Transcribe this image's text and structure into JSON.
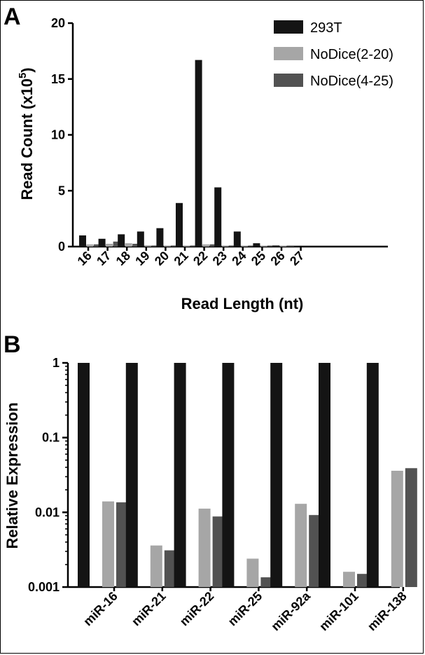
{
  "figure": {
    "panel_a_letter": "A",
    "panel_b_letter": "B"
  },
  "colors": {
    "series_293T": "#141414",
    "series_nodice_2_20": "#a6a6a6",
    "series_nodice_4_25": "#525252"
  },
  "chart_data": [
    {
      "type": "bar",
      "panel": "A",
      "categories": [
        "16",
        "17",
        "18",
        "19",
        "20",
        "21",
        "22",
        "23",
        "24",
        "25",
        "26",
        "27"
      ],
      "xlabel": "Read Length (nt)",
      "ylabel_main": "Read Count (x10",
      "ylabel_sup": "5",
      "ylabel_end": ")",
      "ylim": [
        0,
        20
      ],
      "yticks": [
        "0",
        "5",
        "10",
        "15",
        "20"
      ],
      "ytick_values": [
        0,
        5,
        10,
        15,
        20
      ],
      "grid": false,
      "legend_position": "top-right",
      "series": [
        {
          "name": "293T",
          "values": [
            1.0,
            0.7,
            1.1,
            1.35,
            1.65,
            3.9,
            16.7,
            5.3,
            1.35,
            0.3,
            0.1,
            0.0
          ]
        },
        {
          "name": "NoDice(2-20)",
          "values": [
            0.2,
            0.25,
            0.3,
            0.12,
            0.1,
            0.1,
            0.2,
            0.1,
            0.05,
            0.05,
            0.03,
            0.0
          ]
        },
        {
          "name": "NoDice(4-25)",
          "values": [
            0.2,
            0.45,
            0.25,
            0.1,
            0.1,
            0.1,
            0.2,
            0.1,
            0.05,
            0.05,
            0.03,
            0.0
          ]
        }
      ]
    },
    {
      "type": "bar",
      "panel": "B",
      "categories": [
        "miR-16",
        "miR-21",
        "miR-22",
        "miR-25",
        "miR-92a",
        "miR-101",
        "miR-138"
      ],
      "xlabel": "",
      "ylabel": "Relative Expression",
      "yscale": "log",
      "ylim": [
        0.001,
        1
      ],
      "yticks": [
        "0.001",
        "0.01",
        "0.1",
        "1"
      ],
      "ytick_values": [
        0.001,
        0.01,
        0.1,
        1
      ],
      "grid": false,
      "series": [
        {
          "name": "293T",
          "values": [
            1,
            1,
            1,
            1,
            1,
            1,
            1
          ]
        },
        {
          "name": "NoDice(2-20)",
          "values": [
            0.014,
            0.0036,
            0.0112,
            0.0024,
            0.013,
            0.0016,
            0.036
          ]
        },
        {
          "name": "NoDice(4-25)",
          "values": [
            0.0136,
            0.0031,
            0.0088,
            0.00135,
            0.0092,
            0.0015,
            0.039
          ]
        }
      ]
    }
  ]
}
